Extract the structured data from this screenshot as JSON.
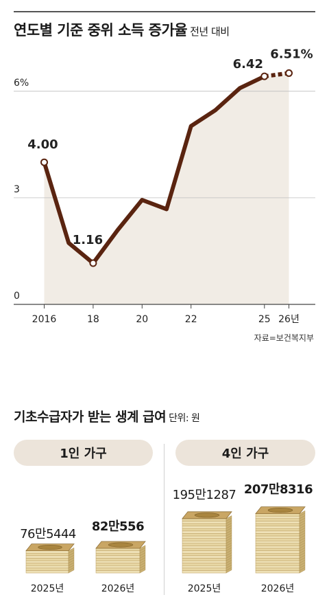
{
  "chart_title": "연도별 기준 중위 소득 증가율",
  "chart_subtitle": "전년 대비",
  "chart_data": {
    "type": "line",
    "title": "연도별 기준 중위 소득 증가율",
    "subtitle": "전년 대비",
    "x": [
      2016,
      2017,
      2018,
      2019,
      2020,
      2021,
      2022,
      2023,
      2024,
      2025,
      2026
    ],
    "y": [
      4.0,
      1.73,
      1.16,
      2.09,
      2.94,
      2.68,
      5.02,
      5.47,
      6.09,
      6.42,
      6.51
    ],
    "labeled_points": {
      "2016": "4.00",
      "2018": "1.16",
      "2025": "6.42",
      "2026": "6.51%"
    },
    "y_ticks": [
      "0",
      "3",
      "6%"
    ],
    "x_ticks": [
      "2016",
      "18",
      "20",
      "22",
      "25",
      "26년"
    ],
    "ylim": [
      0,
      7
    ],
    "forecast_from": 2025,
    "grid": true,
    "line_color": "#5a2410",
    "area_color": "#f1ece5"
  },
  "source": "자료=보건복지부",
  "benefit_title": "기초수급자가 받는 생계 급여",
  "benefit_unit": "단위: 원",
  "groups": [
    {
      "label": "1인 가구",
      "items": [
        {
          "year": "2025년",
          "amount": "76만5444"
        },
        {
          "year": "2026년",
          "amount": "82만556"
        }
      ]
    },
    {
      "label": "4인 가구",
      "items": [
        {
          "year": "2025년",
          "amount": "195만1287"
        },
        {
          "year": "2026년",
          "amount": "207만8316"
        }
      ]
    }
  ]
}
